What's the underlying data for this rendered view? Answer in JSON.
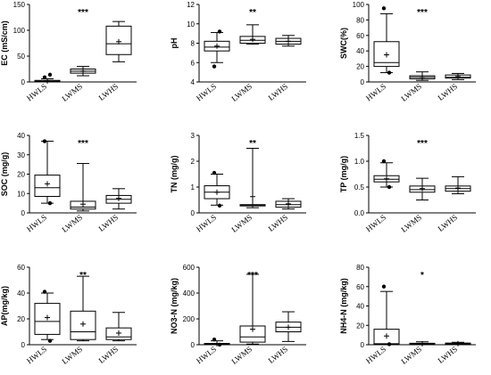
{
  "chart_data": [
    {
      "type": "box",
      "ylabel": "EC (mS/cm)",
      "ylim": [
        0,
        150
      ],
      "yticks": [
        0,
        50,
        100,
        150
      ],
      "categories": [
        "HWLS",
        "LWMS",
        "LWHS"
      ],
      "significance": "***",
      "series": [
        {
          "min": 0,
          "q1": 0.5,
          "median": 1.5,
          "q3": 3,
          "max": 6,
          "mean": 2,
          "outliers": [
            9,
            14
          ]
        },
        {
          "min": 12,
          "q1": 17,
          "median": 21,
          "q3": 25,
          "max": 30,
          "mean": 21,
          "outliers": []
        },
        {
          "min": 39,
          "q1": 53,
          "median": 74,
          "q3": 108,
          "max": 117,
          "mean": 78,
          "outliers": []
        }
      ]
    },
    {
      "type": "box",
      "ylabel": "pH",
      "ylim": [
        4,
        12
      ],
      "yticks": [
        4,
        6,
        8,
        10,
        12
      ],
      "categories": [
        "HWLS",
        "LWMS",
        "LWHS"
      ],
      "significance": "**",
      "series": [
        {
          "min": 6,
          "q1": 7.2,
          "median": 7.6,
          "q3": 8.2,
          "max": 9.1,
          "mean": 7.7,
          "outliers": [
            5.6,
            9.2
          ]
        },
        {
          "min": 7.9,
          "q1": 8.0,
          "median": 8.3,
          "q3": 8.7,
          "max": 9.9,
          "mean": 8.4,
          "outliers": []
        },
        {
          "min": 7.7,
          "q1": 7.9,
          "median": 8.2,
          "q3": 8.5,
          "max": 8.8,
          "mean": 8.2,
          "outliers": []
        }
      ]
    },
    {
      "type": "box",
      "ylabel": "SWC(%)",
      "ylim": [
        0,
        100
      ],
      "yticks": [
        0,
        20,
        40,
        60,
        80,
        100
      ],
      "categories": [
        "HWLS",
        "LWMS",
        "LWHS"
      ],
      "significance": "***",
      "series": [
        {
          "min": 12,
          "q1": 20,
          "median": 25,
          "q3": 52,
          "max": 88,
          "mean": 35,
          "outliers": [
            95,
            12
          ]
        },
        {
          "min": 2,
          "q1": 4,
          "median": 6,
          "q3": 8,
          "max": 13,
          "mean": 6,
          "outliers": []
        },
        {
          "min": 3,
          "q1": 5,
          "median": 6,
          "q3": 9,
          "max": 11,
          "mean": 7,
          "outliers": []
        }
      ]
    },
    {
      "type": "box",
      "ylabel": "SOC (mg/g)",
      "ylim": [
        0,
        40
      ],
      "yticks": [
        0,
        10,
        20,
        30,
        40
      ],
      "categories": [
        "HWLS",
        "LWMS",
        "LWHS"
      ],
      "significance": "***",
      "series": [
        {
          "min": 5,
          "q1": 8.5,
          "median": 13,
          "q3": 19.5,
          "max": 37,
          "mean": 15,
          "outliers": [
            37,
            5
          ]
        },
        {
          "min": 1,
          "q1": 2,
          "median": 3,
          "q3": 6,
          "max": 25.5,
          "mean": 4.5,
          "outliers": []
        },
        {
          "min": 2,
          "q1": 5,
          "median": 7,
          "q3": 9,
          "max": 12.5,
          "mean": 7.5,
          "outliers": []
        }
      ]
    },
    {
      "type": "box",
      "ylabel": "TN (mg/g)",
      "ylim": [
        0,
        3
      ],
      "yticks": [
        0,
        1,
        2,
        3
      ],
      "categories": [
        "HWLS",
        "LWMS",
        "LWHS"
      ],
      "significance": "**",
      "series": [
        {
          "min": 0.3,
          "q1": 0.55,
          "median": 0.8,
          "q3": 1.05,
          "max": 1.5,
          "mean": 0.8,
          "outliers": [
            1.55,
            0.28
          ]
        },
        {
          "min": 0.2,
          "q1": 0.27,
          "median": 0.3,
          "q3": 0.32,
          "max": 2.5,
          "mean": 0.63,
          "outliers": []
        },
        {
          "min": 0.15,
          "q1": 0.22,
          "median": 0.32,
          "q3": 0.45,
          "max": 0.55,
          "mean": 0.35,
          "outliers": []
        }
      ]
    },
    {
      "type": "box",
      "ylabel": "TP (mg/g)",
      "ylim": [
        0,
        1.5
      ],
      "yticks": [
        0.0,
        0.5,
        1.0,
        1.5
      ],
      "categories": [
        "HWLS",
        "LWMS",
        "LWHS"
      ],
      "significance": "***",
      "series": [
        {
          "min": 0.5,
          "q1": 0.6,
          "median": 0.65,
          "q3": 0.72,
          "max": 0.97,
          "mean": 0.66,
          "outliers": [
            1.0,
            0.5
          ]
        },
        {
          "min": 0.25,
          "q1": 0.4,
          "median": 0.45,
          "q3": 0.52,
          "max": 0.67,
          "mean": 0.47,
          "outliers": []
        },
        {
          "min": 0.37,
          "q1": 0.42,
          "median": 0.47,
          "q3": 0.52,
          "max": 0.7,
          "mean": 0.48,
          "outliers": []
        }
      ]
    },
    {
      "type": "box",
      "ylabel": "AP(mg/kg)",
      "ylim": [
        0,
        60
      ],
      "yticks": [
        0,
        20,
        40,
        60
      ],
      "categories": [
        "HWLS",
        "LWMS",
        "LWHS"
      ],
      "significance": "**",
      "series": [
        {
          "min": 4,
          "q1": 8,
          "median": 18,
          "q3": 32,
          "max": 40,
          "mean": 21,
          "outliers": [
            41,
            3
          ]
        },
        {
          "min": 3,
          "q1": 4,
          "median": 10,
          "q3": 26,
          "max": 53,
          "mean": 16,
          "outliers": []
        },
        {
          "min": 3,
          "q1": 4,
          "median": 6,
          "q3": 13,
          "max": 25,
          "mean": 9,
          "outliers": []
        }
      ]
    },
    {
      "type": "box",
      "ylabel": "NO3-N (mg/kg)",
      "ylim": [
        0,
        600
      ],
      "yticks": [
        0,
        200,
        400,
        600
      ],
      "categories": [
        "HWLS",
        "LWMS",
        "LWHS"
      ],
      "significance": "***",
      "series": [
        {
          "min": 0,
          "q1": 2,
          "median": 5,
          "q3": 10,
          "max": 30,
          "mean": 8,
          "outliers": [
            40,
            0
          ]
        },
        {
          "min": 5,
          "q1": 20,
          "median": 60,
          "q3": 145,
          "max": 545,
          "mean": 120,
          "outliers": []
        },
        {
          "min": 25,
          "q1": 100,
          "median": 135,
          "q3": 175,
          "max": 255,
          "mean": 135,
          "outliers": []
        }
      ]
    },
    {
      "type": "box",
      "ylabel": "NH4-N (mg/kg)",
      "ylim": [
        0,
        80
      ],
      "yticks": [
        0,
        20,
        40,
        60,
        80
      ],
      "categories": [
        "HWLS",
        "LWMS",
        "LWHS"
      ],
      "significance": "*",
      "series": [
        {
          "min": 0,
          "q1": 0.5,
          "median": 1,
          "q3": 16,
          "max": 55,
          "mean": 9,
          "outliers": [
            60,
            0.5
          ]
        },
        {
          "min": 0,
          "q1": 0.5,
          "median": 1,
          "q3": 1.5,
          "max": 3,
          "mean": 1,
          "outliers": []
        },
        {
          "min": 0.5,
          "q1": 0.8,
          "median": 1.2,
          "q3": 1.7,
          "max": 2.5,
          "mean": 1.2,
          "outliers": []
        }
      ]
    }
  ]
}
